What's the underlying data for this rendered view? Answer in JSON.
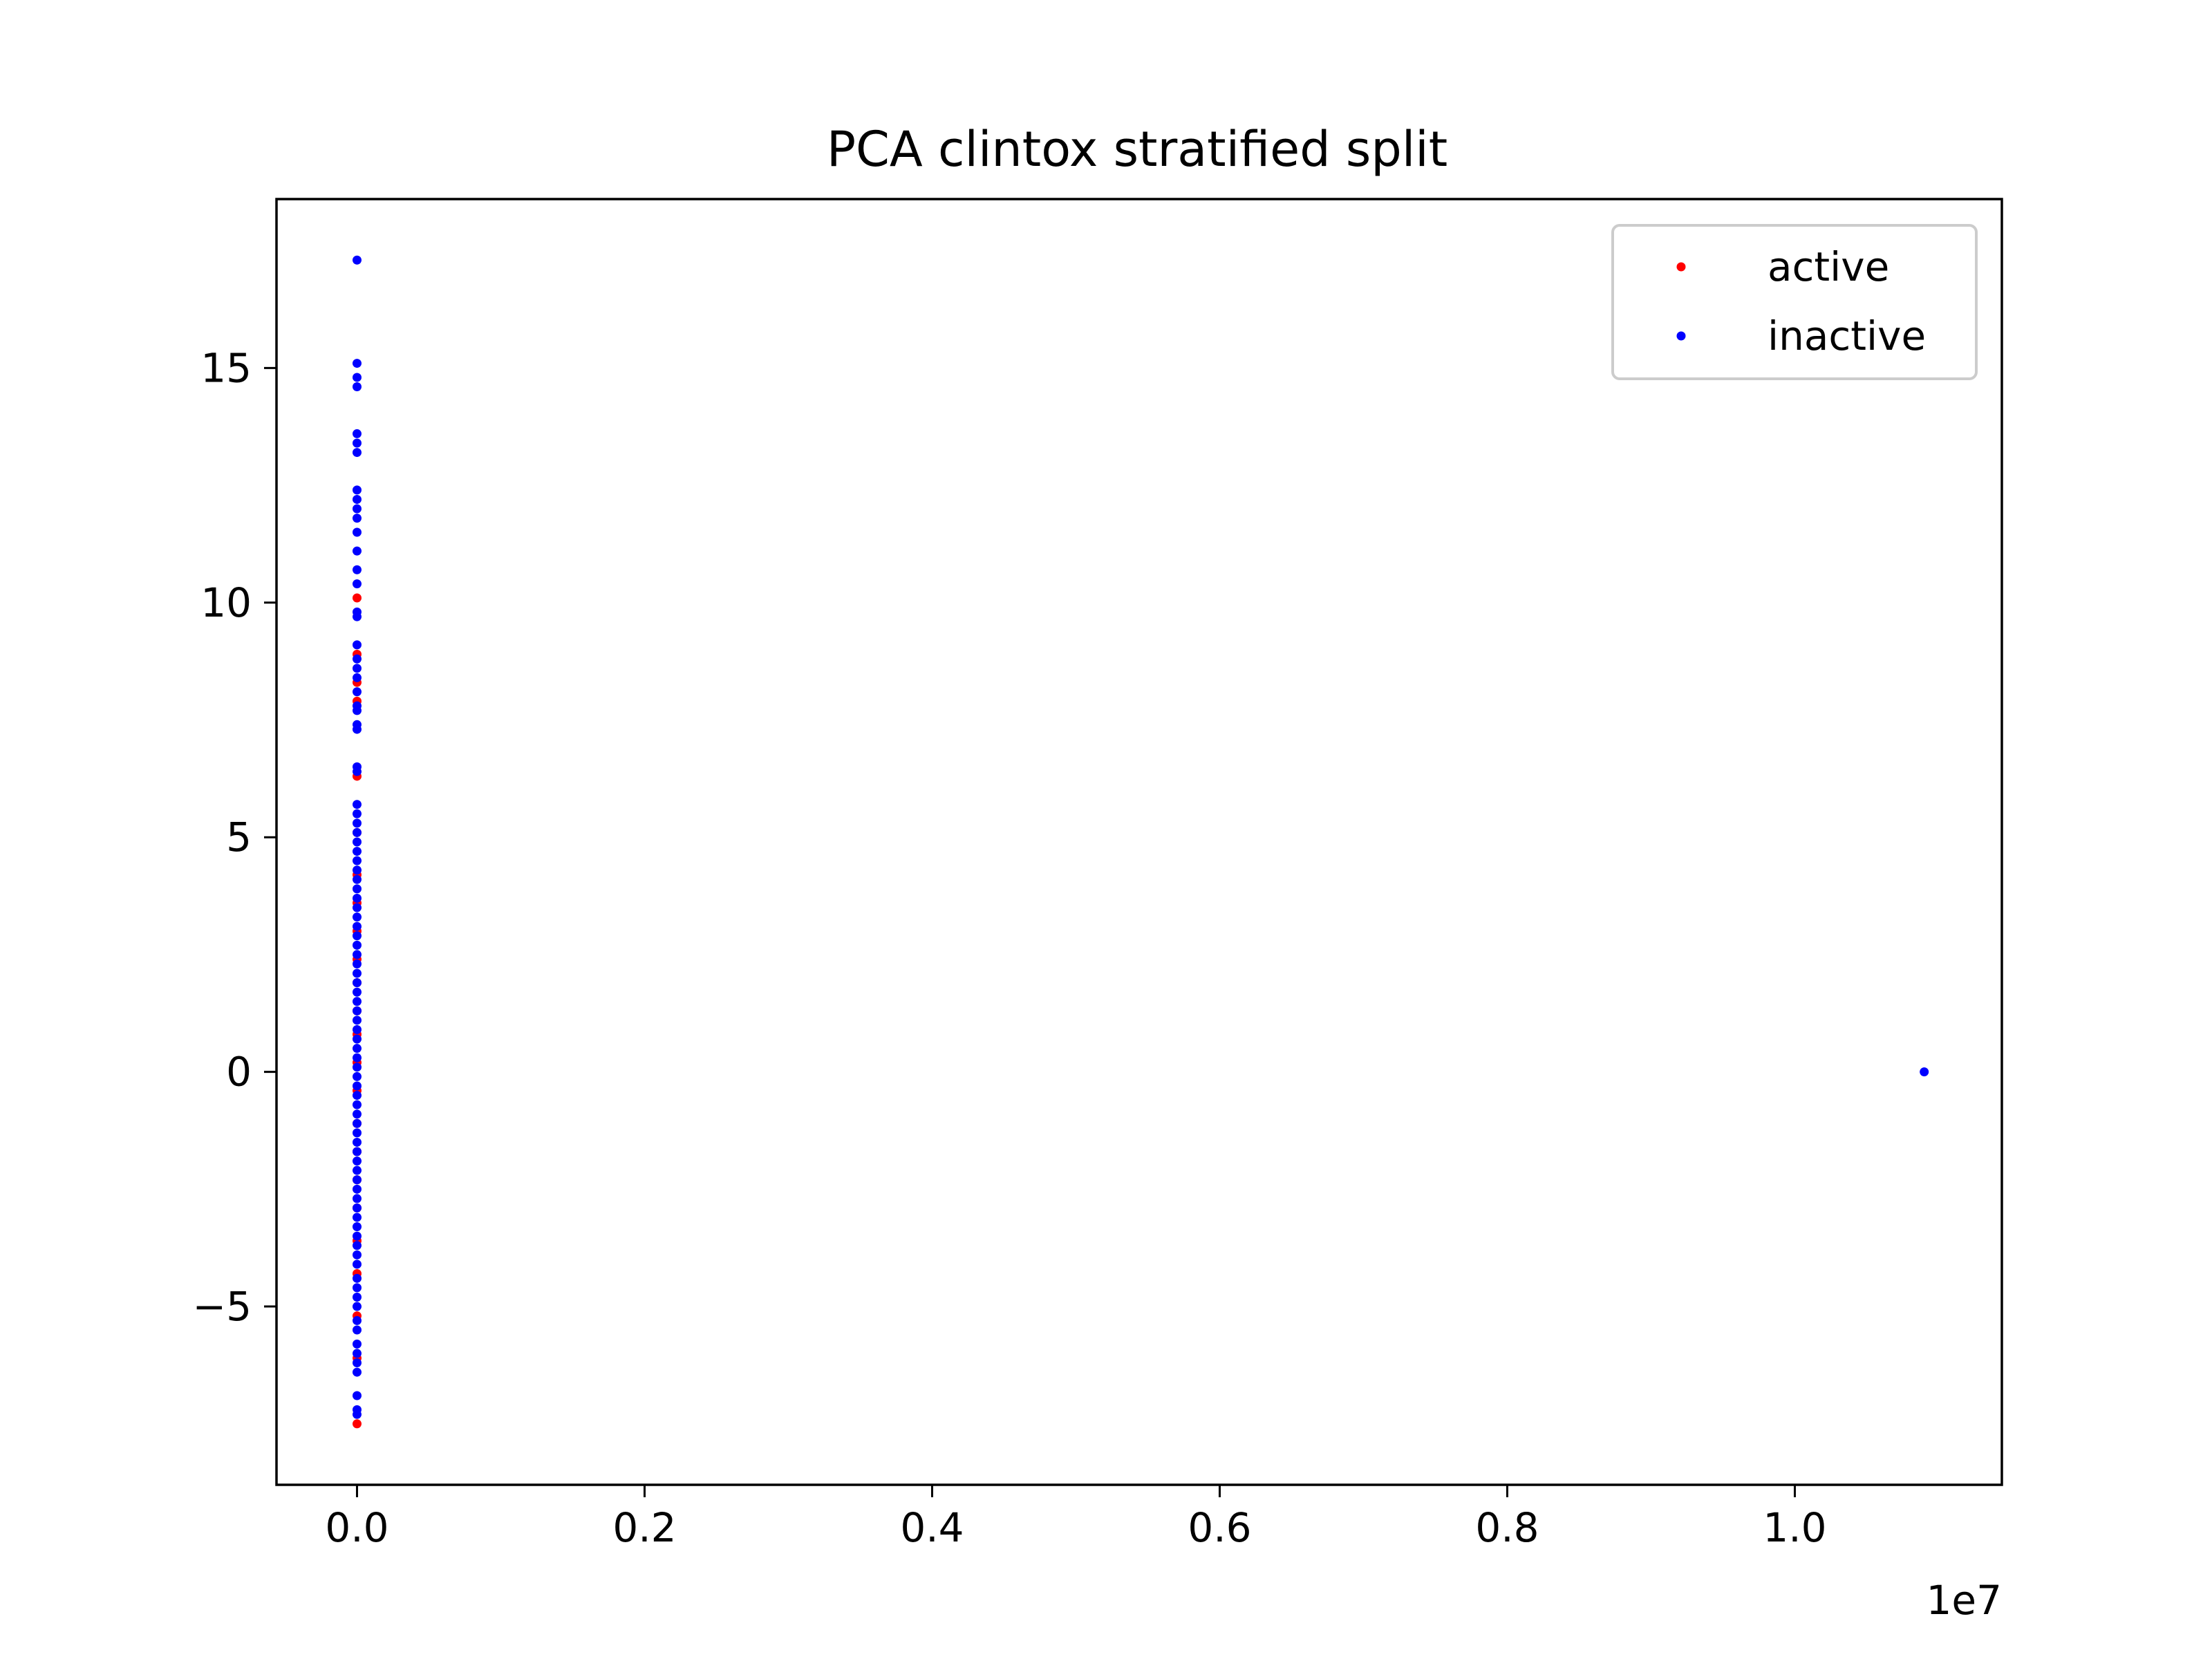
{
  "chart_data": {
    "type": "scatter",
    "title": "PCA clintox stratified split",
    "xlabel": "",
    "ylabel": "",
    "x_offset_label": "1e7",
    "xlim": [
      -560000,
      11440000
    ],
    "ylim": [
      -8.8,
      18.6
    ],
    "x_ticks": [
      0,
      2000000,
      4000000,
      6000000,
      8000000,
      10000000
    ],
    "x_tick_labels": [
      "0.0",
      "0.2",
      "0.4",
      "0.6",
      "0.8",
      "1.0"
    ],
    "y_ticks": [
      -5,
      0,
      5,
      10,
      15
    ],
    "y_tick_labels": [
      "−5",
      "0",
      "5",
      "10",
      "15"
    ],
    "grid": false,
    "legend_position": "top-right",
    "series": [
      {
        "name": "active",
        "color": "#ff0000",
        "points": [
          [
            0,
            10.1
          ],
          [
            0,
            8.9
          ],
          [
            0,
            8.3
          ],
          [
            0,
            7.9
          ],
          [
            0,
            6.3
          ],
          [
            0,
            5.1
          ],
          [
            0,
            4.2
          ],
          [
            0,
            3.6
          ],
          [
            0,
            3.0
          ],
          [
            0,
            2.4
          ],
          [
            0,
            1.9
          ],
          [
            0,
            1.3
          ],
          [
            0,
            0.8
          ],
          [
            0,
            0.2
          ],
          [
            0,
            -0.4
          ],
          [
            0,
            -1.1
          ],
          [
            0,
            -1.7
          ],
          [
            0,
            -2.3
          ],
          [
            0,
            -2.9
          ],
          [
            0,
            -3.6
          ],
          [
            0,
            -4.3
          ],
          [
            0,
            -5.2
          ],
          [
            0,
            -6.1
          ],
          [
            0,
            -7.5
          ]
        ]
      },
      {
        "name": "inactive",
        "color": "#0000ff",
        "points": [
          [
            0,
            17.3
          ],
          [
            0,
            15.1
          ],
          [
            0,
            14.8
          ],
          [
            0,
            14.6
          ],
          [
            0,
            13.6
          ],
          [
            0,
            13.4
          ],
          [
            0,
            13.2
          ],
          [
            0,
            12.4
          ],
          [
            0,
            12.2
          ],
          [
            0,
            12.0
          ],
          [
            0,
            11.8
          ],
          [
            0,
            11.5
          ],
          [
            0,
            11.1
          ],
          [
            0,
            10.7
          ],
          [
            0,
            10.4
          ],
          [
            0,
            9.8
          ],
          [
            0,
            9.7
          ],
          [
            0,
            9.1
          ],
          [
            0,
            8.8
          ],
          [
            0,
            8.6
          ],
          [
            0,
            8.4
          ],
          [
            0,
            8.1
          ],
          [
            0,
            7.8
          ],
          [
            0,
            7.7
          ],
          [
            0,
            7.4
          ],
          [
            0,
            7.3
          ],
          [
            0,
            6.5
          ],
          [
            0,
            6.4
          ],
          [
            0,
            5.7
          ],
          [
            0,
            5.5
          ],
          [
            0,
            5.3
          ],
          [
            0,
            5.1
          ],
          [
            0,
            4.9
          ],
          [
            0,
            4.7
          ],
          [
            0,
            4.5
          ],
          [
            0,
            4.3
          ],
          [
            0,
            4.1
          ],
          [
            0,
            3.9
          ],
          [
            0,
            3.7
          ],
          [
            0,
            3.5
          ],
          [
            0,
            3.3
          ],
          [
            0,
            3.1
          ],
          [
            0,
            2.9
          ],
          [
            0,
            2.7
          ],
          [
            0,
            2.5
          ],
          [
            0,
            2.3
          ],
          [
            0,
            2.1
          ],
          [
            0,
            1.9
          ],
          [
            0,
            1.7
          ],
          [
            0,
            1.5
          ],
          [
            0,
            1.3
          ],
          [
            0,
            1.1
          ],
          [
            0,
            0.9
          ],
          [
            0,
            0.7
          ],
          [
            0,
            0.5
          ],
          [
            0,
            0.3
          ],
          [
            0,
            0.1
          ],
          [
            0,
            -0.1
          ],
          [
            0,
            -0.3
          ],
          [
            0,
            -0.5
          ],
          [
            0,
            -0.7
          ],
          [
            0,
            -0.9
          ],
          [
            0,
            -1.1
          ],
          [
            0,
            -1.3
          ],
          [
            0,
            -1.5
          ],
          [
            0,
            -1.7
          ],
          [
            0,
            -1.9
          ],
          [
            0,
            -2.1
          ],
          [
            0,
            -2.3
          ],
          [
            0,
            -2.5
          ],
          [
            0,
            -2.7
          ],
          [
            0,
            -2.9
          ],
          [
            0,
            -3.1
          ],
          [
            0,
            -3.3
          ],
          [
            0,
            -3.5
          ],
          [
            0,
            -3.7
          ],
          [
            0,
            -3.9
          ],
          [
            0,
            -4.1
          ],
          [
            0,
            -4.4
          ],
          [
            0,
            -4.6
          ],
          [
            0,
            -4.8
          ],
          [
            0,
            -5.0
          ],
          [
            0,
            -5.3
          ],
          [
            0,
            -5.5
          ],
          [
            0,
            -5.8
          ],
          [
            0,
            -6.0
          ],
          [
            0,
            -6.2
          ],
          [
            0,
            -6.4
          ],
          [
            0,
            -6.9
          ],
          [
            0,
            -7.2
          ],
          [
            0,
            -7.3
          ],
          [
            10900000,
            0
          ]
        ]
      }
    ]
  }
}
